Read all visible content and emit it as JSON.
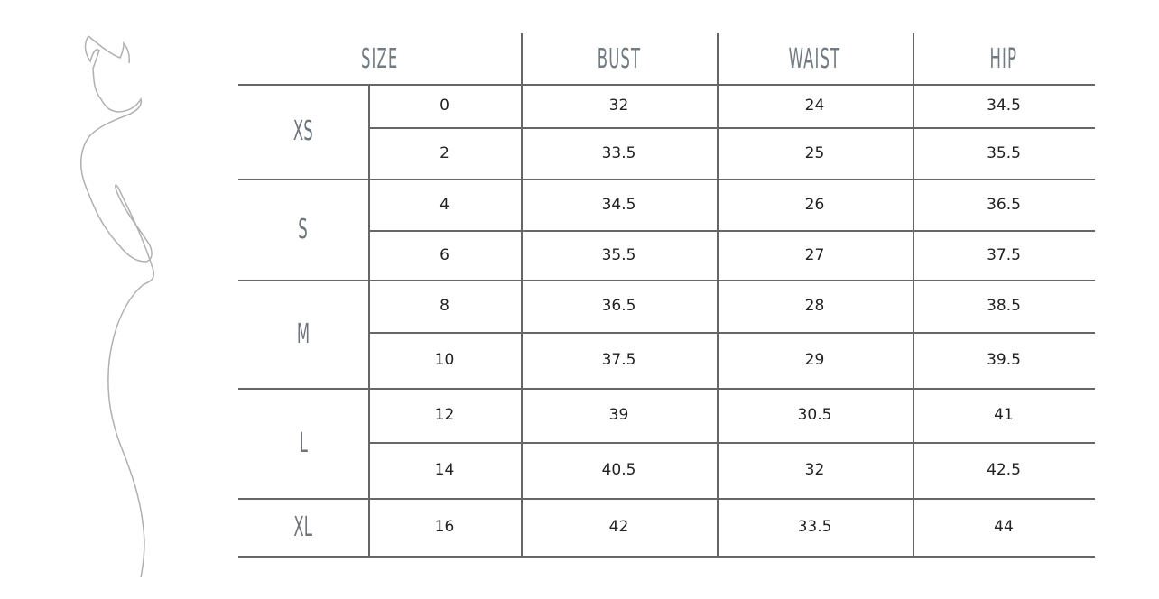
{
  "headers": {
    "size": "SIZE",
    "bust": "BUST",
    "waist": "WAIST",
    "hip": "HIP"
  },
  "groups": [
    {
      "label": "XS",
      "rows": 2
    },
    {
      "label": "S",
      "rows": 2
    },
    {
      "label": "M",
      "rows": 2
    },
    {
      "label": "L",
      "rows": 2
    },
    {
      "label": "XL",
      "rows": 1
    }
  ],
  "rows": [
    {
      "size": "0",
      "bust": "32",
      "waist": "24",
      "hip": "34.5"
    },
    {
      "size": "2",
      "bust": "33.5",
      "waist": "25",
      "hip": "35.5"
    },
    {
      "size": "4",
      "bust": "34.5",
      "waist": "26",
      "hip": "36.5"
    },
    {
      "size": "6",
      "bust": "35.5",
      "waist": "27",
      "hip": "37.5"
    },
    {
      "size": "8",
      "bust": "36.5",
      "waist": "28",
      "hip": "38.5"
    },
    {
      "size": "10",
      "bust": "37.5",
      "waist": "29",
      "hip": "39.5"
    },
    {
      "size": "12",
      "bust": "39",
      "waist": "30.5",
      "hip": "41"
    },
    {
      "size": "14",
      "bust": "40.5",
      "waist": "32",
      "hip": "42.5"
    },
    {
      "size": "16",
      "bust": "42",
      "waist": "33.5",
      "hip": "44"
    }
  ],
  "colors": {
    "line": "#666666",
    "header_text": "#707b82",
    "figure_stroke": "#b0b0b0"
  },
  "figure_icon": "woman-silhouette-line-drawing"
}
